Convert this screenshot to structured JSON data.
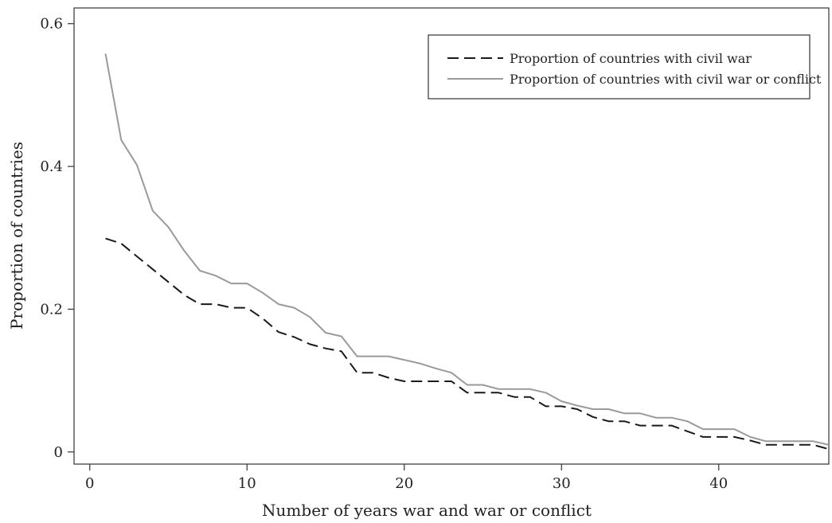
{
  "chart_data": {
    "type": "line",
    "xlabel": "Number of years war and war or conflict",
    "ylabel": "Proportion of countries",
    "xlim": [
      -1,
      47
    ],
    "ylim": [
      -0.017,
      0.622
    ],
    "xticks": [
      0,
      10,
      20,
      30,
      40
    ],
    "xtick_labels": [
      "0",
      "10",
      "20",
      "30",
      "40"
    ],
    "yticks": [
      0,
      0.2,
      0.4,
      0.6
    ],
    "ytick_labels": [
      "0",
      "0.2",
      "0.4",
      "0.6"
    ],
    "grid": false,
    "legend_position": "top-right",
    "series": [
      {
        "name": "Proportion of countries with civil war",
        "style": "dashed",
        "color": "#1a1a1a",
        "x": [
          1,
          2,
          3,
          4,
          5,
          6,
          7,
          8,
          9,
          10,
          11,
          12,
          13,
          14,
          15,
          16,
          17,
          18,
          19,
          20,
          21,
          22,
          23,
          24,
          25,
          26,
          27,
          28,
          29,
          30,
          31,
          32,
          33,
          34,
          35,
          36,
          37,
          38,
          39,
          40,
          41,
          42,
          43,
          44,
          45,
          46,
          47
        ],
        "y": [
          0.299,
          0.292,
          0.274,
          0.256,
          0.238,
          0.22,
          0.207,
          0.207,
          0.202,
          0.202,
          0.187,
          0.168,
          0.161,
          0.151,
          0.145,
          0.141,
          0.111,
          0.111,
          0.104,
          0.099,
          0.099,
          0.099,
          0.099,
          0.083,
          0.083,
          0.083,
          0.077,
          0.077,
          0.064,
          0.064,
          0.06,
          0.049,
          0.043,
          0.043,
          0.037,
          0.037,
          0.037,
          0.029,
          0.021,
          0.021,
          0.021,
          0.016,
          0.01,
          0.01,
          0.01,
          0.01,
          0.004
        ]
      },
      {
        "name": "Proportion of countries with civil war or conflict",
        "style": "solid",
        "color": "#9a9a9a",
        "x": [
          1,
          2,
          3,
          4,
          5,
          6,
          7,
          8,
          9,
          10,
          11,
          12,
          13,
          14,
          15,
          16,
          17,
          18,
          19,
          20,
          21,
          22,
          23,
          24,
          25,
          26,
          27,
          28,
          29,
          30,
          31,
          32,
          33,
          34,
          35,
          36,
          37,
          38,
          39,
          40,
          41,
          42,
          43,
          44,
          45,
          46,
          47
        ],
        "y": [
          0.558,
          0.437,
          0.402,
          0.338,
          0.315,
          0.282,
          0.254,
          0.247,
          0.236,
          0.236,
          0.223,
          0.207,
          0.202,
          0.189,
          0.167,
          0.162,
          0.134,
          0.134,
          0.134,
          0.129,
          0.124,
          0.117,
          0.111,
          0.094,
          0.094,
          0.088,
          0.088,
          0.088,
          0.083,
          0.071,
          0.065,
          0.06,
          0.06,
          0.054,
          0.054,
          0.048,
          0.048,
          0.043,
          0.032,
          0.032,
          0.032,
          0.021,
          0.015,
          0.015,
          0.015,
          0.015,
          0.01
        ]
      }
    ]
  }
}
